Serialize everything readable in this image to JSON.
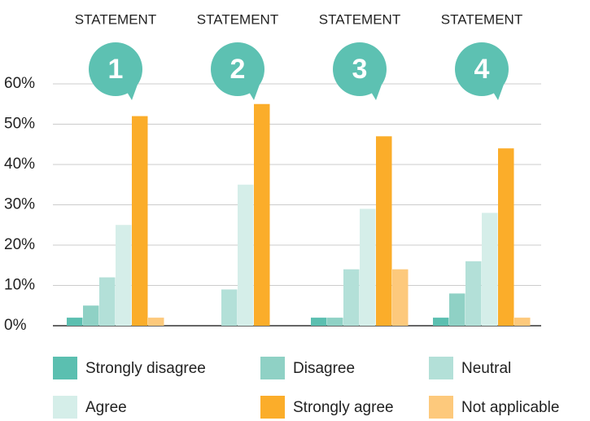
{
  "chart_data": {
    "type": "bar",
    "categories": [
      "STATEMENT",
      "STATEMENT",
      "STATEMENT",
      "STATEMENT"
    ],
    "badges": [
      "1",
      "2",
      "3",
      "4"
    ],
    "series": [
      {
        "name": "Strongly disagree",
        "color": "#5bbfb0",
        "values": [
          2,
          0,
          2,
          2
        ]
      },
      {
        "name": "Disagree",
        "color": "#8fd1c5",
        "values": [
          5,
          0,
          2,
          8
        ]
      },
      {
        "name": "Neutral",
        "color": "#b3e0d8",
        "values": [
          12,
          9,
          14,
          16
        ]
      },
      {
        "name": "Agree",
        "color": "#d5eee9",
        "values": [
          25,
          35,
          29,
          28
        ]
      },
      {
        "name": "Strongly agree",
        "color": "#fbad2a",
        "values": [
          52,
          55,
          47,
          44
        ]
      },
      {
        "name": "Not applicable",
        "color": "#fdc97c",
        "values": [
          2,
          0,
          14,
          2
        ]
      }
    ],
    "ylim": [
      0,
      60
    ],
    "yticks": [
      {
        "value": 0,
        "label": "0%"
      },
      {
        "value": 10,
        "label": "10%"
      },
      {
        "value": 20,
        "label": "20%"
      },
      {
        "value": 30,
        "label": "30%"
      },
      {
        "value": 40,
        "label": "40%"
      },
      {
        "value": 50,
        "label": "50%"
      },
      {
        "value": 60,
        "label": "60%"
      }
    ],
    "grid": true,
    "badge_color": "#5dc1b2"
  }
}
